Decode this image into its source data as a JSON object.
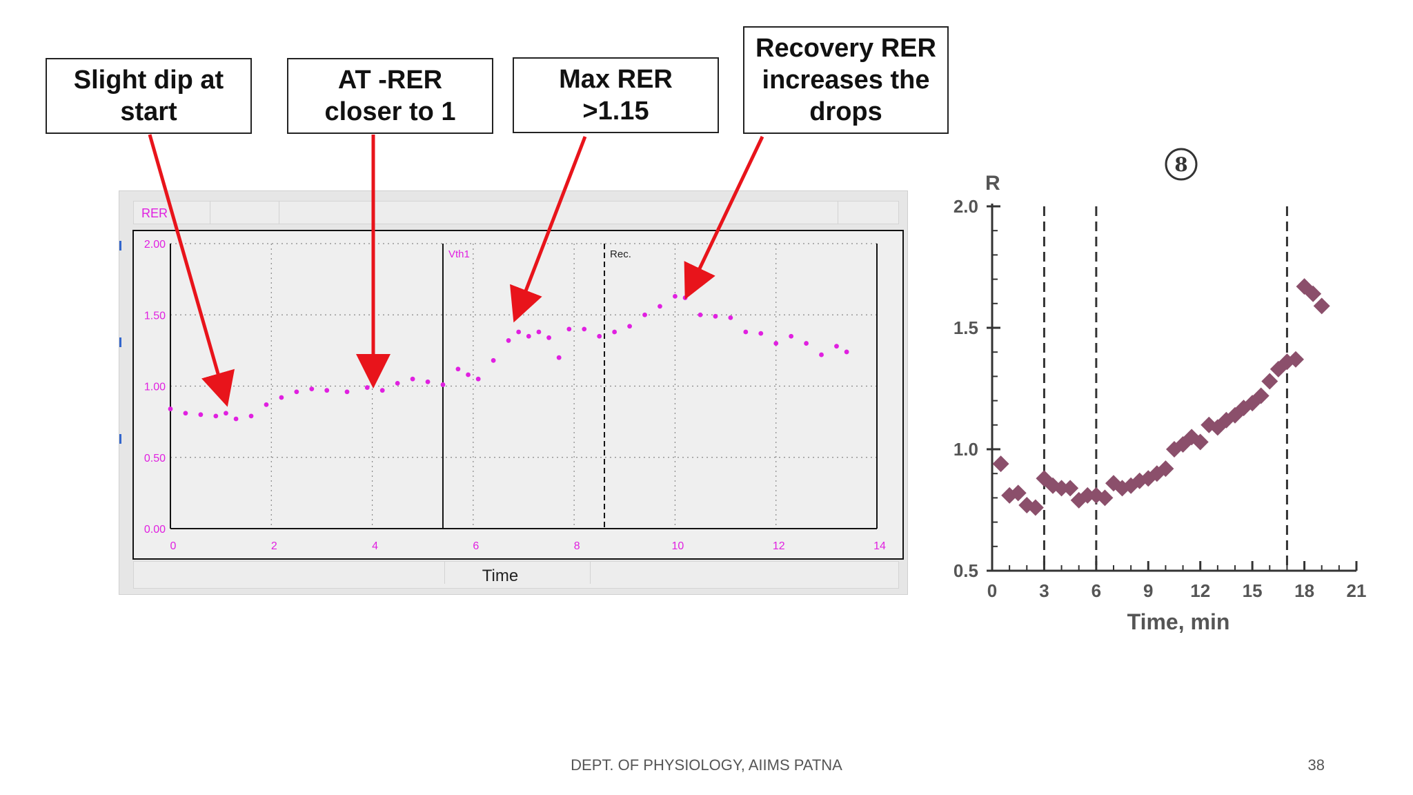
{
  "callouts": {
    "dip": "Slight dip at\nstart",
    "at": "AT -RER\ncloser to 1",
    "max": "Max RER\n>1.15",
    "recovery": "Recovery RER\nincreases the\ndrops"
  },
  "footer": {
    "text": "DEPT. OF PHYSIOLOGY, AIIMS PATNA",
    "page": "38"
  },
  "colors": {
    "arrow": "#e8141b",
    "magenta_series": "#e020e0",
    "diamond_series": "#8b4f6b"
  },
  "chart_data": [
    {
      "type": "scatter",
      "series": [
        {
          "name": "RER",
          "x": [
            0.0,
            0.3,
            0.6,
            0.9,
            1.1,
            1.3,
            1.6,
            1.9,
            2.2,
            2.5,
            2.8,
            3.1,
            3.5,
            3.9,
            4.2,
            4.5,
            4.8,
            5.1,
            5.4,
            5.7,
            5.9,
            6.1,
            6.4,
            6.7,
            6.9,
            7.1,
            7.3,
            7.5,
            7.7,
            7.9,
            8.2,
            8.5,
            8.8,
            9.1,
            9.4,
            9.7,
            10.0,
            10.2,
            10.5,
            10.8,
            11.1,
            11.4,
            11.7,
            12.0,
            12.3,
            12.6,
            12.9,
            13.2,
            13.4
          ],
          "y": [
            0.84,
            0.81,
            0.8,
            0.79,
            0.81,
            0.77,
            0.79,
            0.87,
            0.92,
            0.96,
            0.98,
            0.97,
            0.96,
            0.99,
            0.97,
            1.02,
            1.05,
            1.03,
            1.01,
            1.12,
            1.08,
            1.05,
            1.18,
            1.32,
            1.38,
            1.35,
            1.38,
            1.34,
            1.2,
            1.4,
            1.4,
            1.35,
            1.38,
            1.42,
            1.5,
            1.56,
            1.63,
            1.62,
            1.5,
            1.49,
            1.48,
            1.38,
            1.37,
            1.3,
            1.35,
            1.3,
            1.22,
            1.28,
            1.24
          ]
        }
      ],
      "title": "",
      "xlabel": "Time",
      "ylabel": "RER",
      "xlim": [
        0,
        14
      ],
      "ylim": [
        0,
        2
      ],
      "xticks": [
        "0",
        "2",
        "4",
        "6",
        "8",
        "10",
        "12",
        "14"
      ],
      "yticks": [
        "0.00",
        "0.50",
        "1.00",
        "1.50",
        "2.00"
      ],
      "grid": true,
      "vlines": [
        {
          "x": 5.4,
          "label": "Vth1",
          "style": "solid"
        },
        {
          "x": 8.6,
          "label": "Rec.",
          "style": "dashed"
        }
      ]
    },
    {
      "type": "scatter",
      "marker": "diamond",
      "panel_label": "8",
      "series": [
        {
          "x": [
            0.5,
            1.0,
            1.5,
            2.0,
            2.5,
            3.0,
            3.5,
            4.0,
            4.5,
            5.0,
            5.5,
            6.0,
            6.5,
            7.0,
            7.5,
            8.0,
            8.5,
            9.0,
            9.5,
            10.0,
            10.5,
            11.0,
            11.5,
            12.0,
            12.5,
            13.0,
            13.5,
            14.0,
            14.5,
            15.0,
            15.5,
            16.0,
            16.5,
            17.0,
            17.5,
            18.0,
            18.5,
            19.0
          ],
          "y": [
            0.94,
            0.81,
            0.82,
            0.77,
            0.76,
            0.88,
            0.85,
            0.84,
            0.84,
            0.79,
            0.81,
            0.81,
            0.8,
            0.86,
            0.84,
            0.85,
            0.87,
            0.88,
            0.9,
            0.92,
            1.0,
            1.02,
            1.05,
            1.03,
            1.1,
            1.09,
            1.12,
            1.14,
            1.17,
            1.19,
            1.22,
            1.28,
            1.33,
            1.36,
            1.37,
            1.67,
            1.64,
            1.59
          ]
        }
      ],
      "xlabel": "Time, min",
      "ylabel": "R",
      "xlim": [
        0,
        21
      ],
      "ylim": [
        0.5,
        2.0
      ],
      "xticks": [
        "0",
        "3",
        "6",
        "9",
        "12",
        "15",
        "18",
        "21"
      ],
      "yticks": [
        "0.5",
        "1.0",
        "1.5",
        "2.0"
      ],
      "grid": false,
      "vlines": [
        {
          "x": 3,
          "style": "dashed"
        },
        {
          "x": 6,
          "style": "dashed"
        },
        {
          "x": 17,
          "style": "dashed"
        }
      ]
    }
  ]
}
